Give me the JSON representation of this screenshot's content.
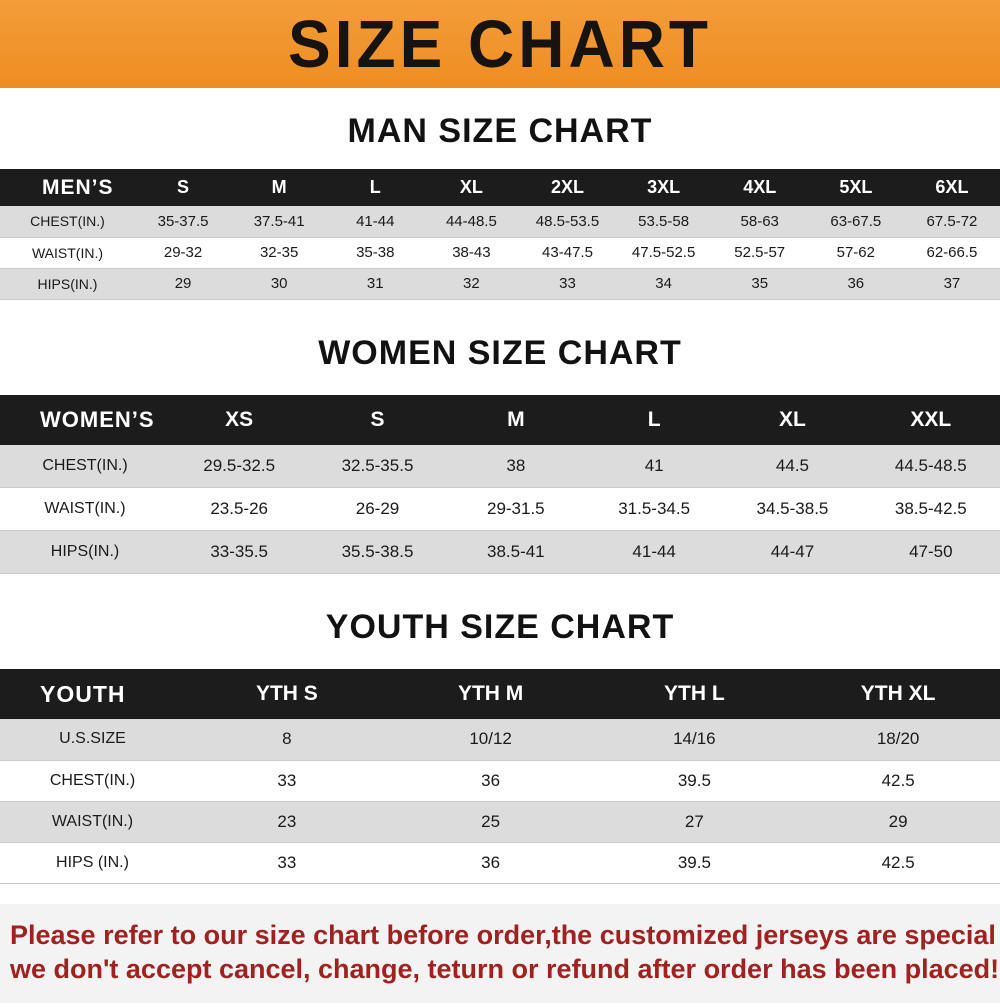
{
  "banner": {
    "title": "SIZE CHART"
  },
  "headings": {
    "man": "MAN SIZE CHART",
    "women": "WOMEN SIZE CHART",
    "youth": "YOUTH SIZE CHART"
  },
  "colors": {
    "banner_orange": "#ef8d22",
    "banner_orange_light": "#f39d38",
    "table_header_black": "#1c1c1c",
    "row_gray": "#dcdcdc",
    "note_red": "#a02220",
    "note_bg": "#f3f3f3"
  },
  "chart_data": [
    {
      "type": "table",
      "title": "MAN SIZE CHART",
      "header": [
        "MEN’S",
        "S",
        "M",
        "L",
        "XL",
        "2XL",
        "3XL",
        "4XL",
        "5XL",
        "6XL"
      ],
      "rows": [
        [
          "CHEST(IN.)",
          "35-37.5",
          "37.5-41",
          "41-44",
          "44-48.5",
          "48.5-53.5",
          "53.5-58",
          "58-63",
          "63-67.5",
          "67.5-72"
        ],
        [
          "WAIST(IN.)",
          "29-32",
          "32-35",
          "35-38",
          "38-43",
          "43-47.5",
          "47.5-52.5",
          "52.5-57",
          "57-62",
          "62-66.5"
        ],
        [
          "HIPS(IN.)",
          "29",
          "30",
          "31",
          "32",
          "33",
          "34",
          "35",
          "36",
          "37"
        ]
      ]
    },
    {
      "type": "table",
      "title": "WOMEN SIZE CHART",
      "header": [
        "WOMEN’S",
        "XS",
        "S",
        "M",
        "L",
        "XL",
        "XXL"
      ],
      "rows": [
        [
          "CHEST(IN.)",
          "29.5-32.5",
          "32.5-35.5",
          "38",
          "41",
          "44.5",
          "44.5-48.5"
        ],
        [
          "WAIST(IN.)",
          "23.5-26",
          "26-29",
          "29-31.5",
          "31.5-34.5",
          "34.5-38.5",
          "38.5-42.5"
        ],
        [
          "HIPS(IN.)",
          "33-35.5",
          "35.5-38.5",
          "38.5-41",
          "41-44",
          "44-47",
          "47-50"
        ]
      ]
    },
    {
      "type": "table",
      "title": "YOUTH SIZE CHART",
      "header": [
        "YOUTH",
        "YTH S",
        "YTH M",
        "YTH L",
        "YTH XL"
      ],
      "rows": [
        [
          "U.S.SIZE",
          "8",
          "10/12",
          "14/16",
          "18/20"
        ],
        [
          "CHEST(IN.)",
          "33",
          "36",
          "39.5",
          "42.5"
        ],
        [
          "WAIST(IN.)",
          "23",
          "25",
          "27",
          "29"
        ],
        [
          "HIPS (IN.)",
          "33",
          "36",
          "39.5",
          "42.5"
        ]
      ]
    }
  ],
  "note": {
    "line1": "Please refer to our size chart before order,the customized jerseys are special products,",
    "line2": "we don't accept cancel, change, teturn or refund after order has been placed!"
  }
}
